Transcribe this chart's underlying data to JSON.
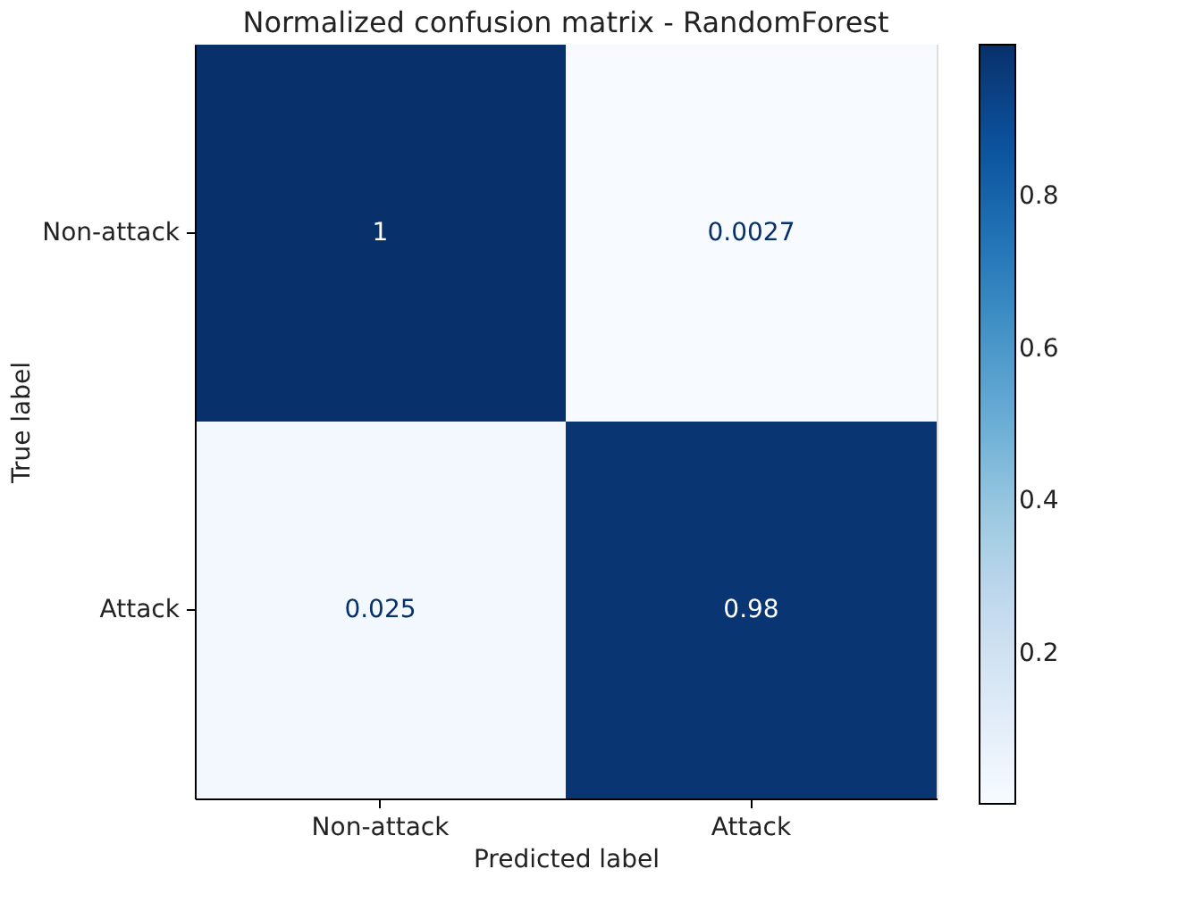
{
  "chart_data": {
    "type": "heatmap",
    "title": "Normalized confusion matrix - RandomForest",
    "xlabel": "Predicted label",
    "ylabel": "True label",
    "categories": [
      "Non-attack",
      "Attack"
    ],
    "y_categories": [
      "Non-attack",
      "Attack"
    ],
    "cells": [
      [
        1,
        0.0027
      ],
      [
        0.025,
        0.98
      ]
    ],
    "clim": [
      0.0027,
      1
    ],
    "cticks": [
      0.2,
      0.4,
      0.6,
      0.8
    ],
    "data_labels": true,
    "grid": false
  }
}
